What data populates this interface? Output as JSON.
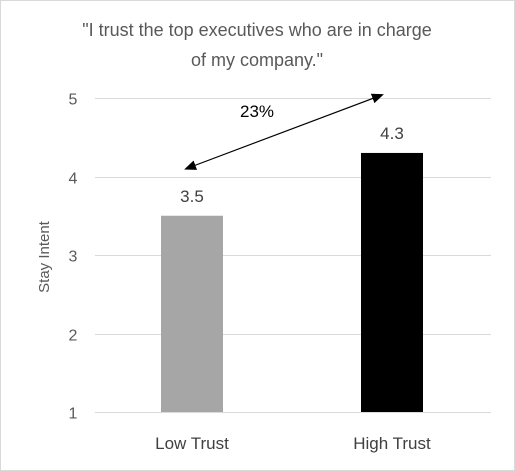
{
  "chart_data": {
    "type": "bar",
    "title": "\"I trust the top executives who are in charge of my company.\"",
    "title_lines": [
      "\"I trust the top executives who are in charge",
      "of my company.\""
    ],
    "categories": [
      "Low Trust",
      "High Trust"
    ],
    "values": [
      3.5,
      4.3
    ],
    "value_labels": [
      "3.5",
      "4.3"
    ],
    "bar_colors": [
      "#a6a6a6",
      "#000000"
    ],
    "xlabel": "",
    "ylabel": "Stay Intent",
    "ylim": [
      1,
      5
    ],
    "yticks": [
      1,
      2,
      3,
      4,
      5
    ],
    "ytick_labels": [
      "1",
      "2",
      "3",
      "4",
      "5"
    ],
    "grid": "horizontal",
    "legend": "none",
    "annotation": {
      "text": "23%",
      "type": "double-headed-arrow",
      "from_category": "Low Trust",
      "to_category": "High Trust"
    },
    "colors": {
      "gridline": "#d9d9d9",
      "text": "#595959",
      "arrow": "#000000"
    }
  }
}
